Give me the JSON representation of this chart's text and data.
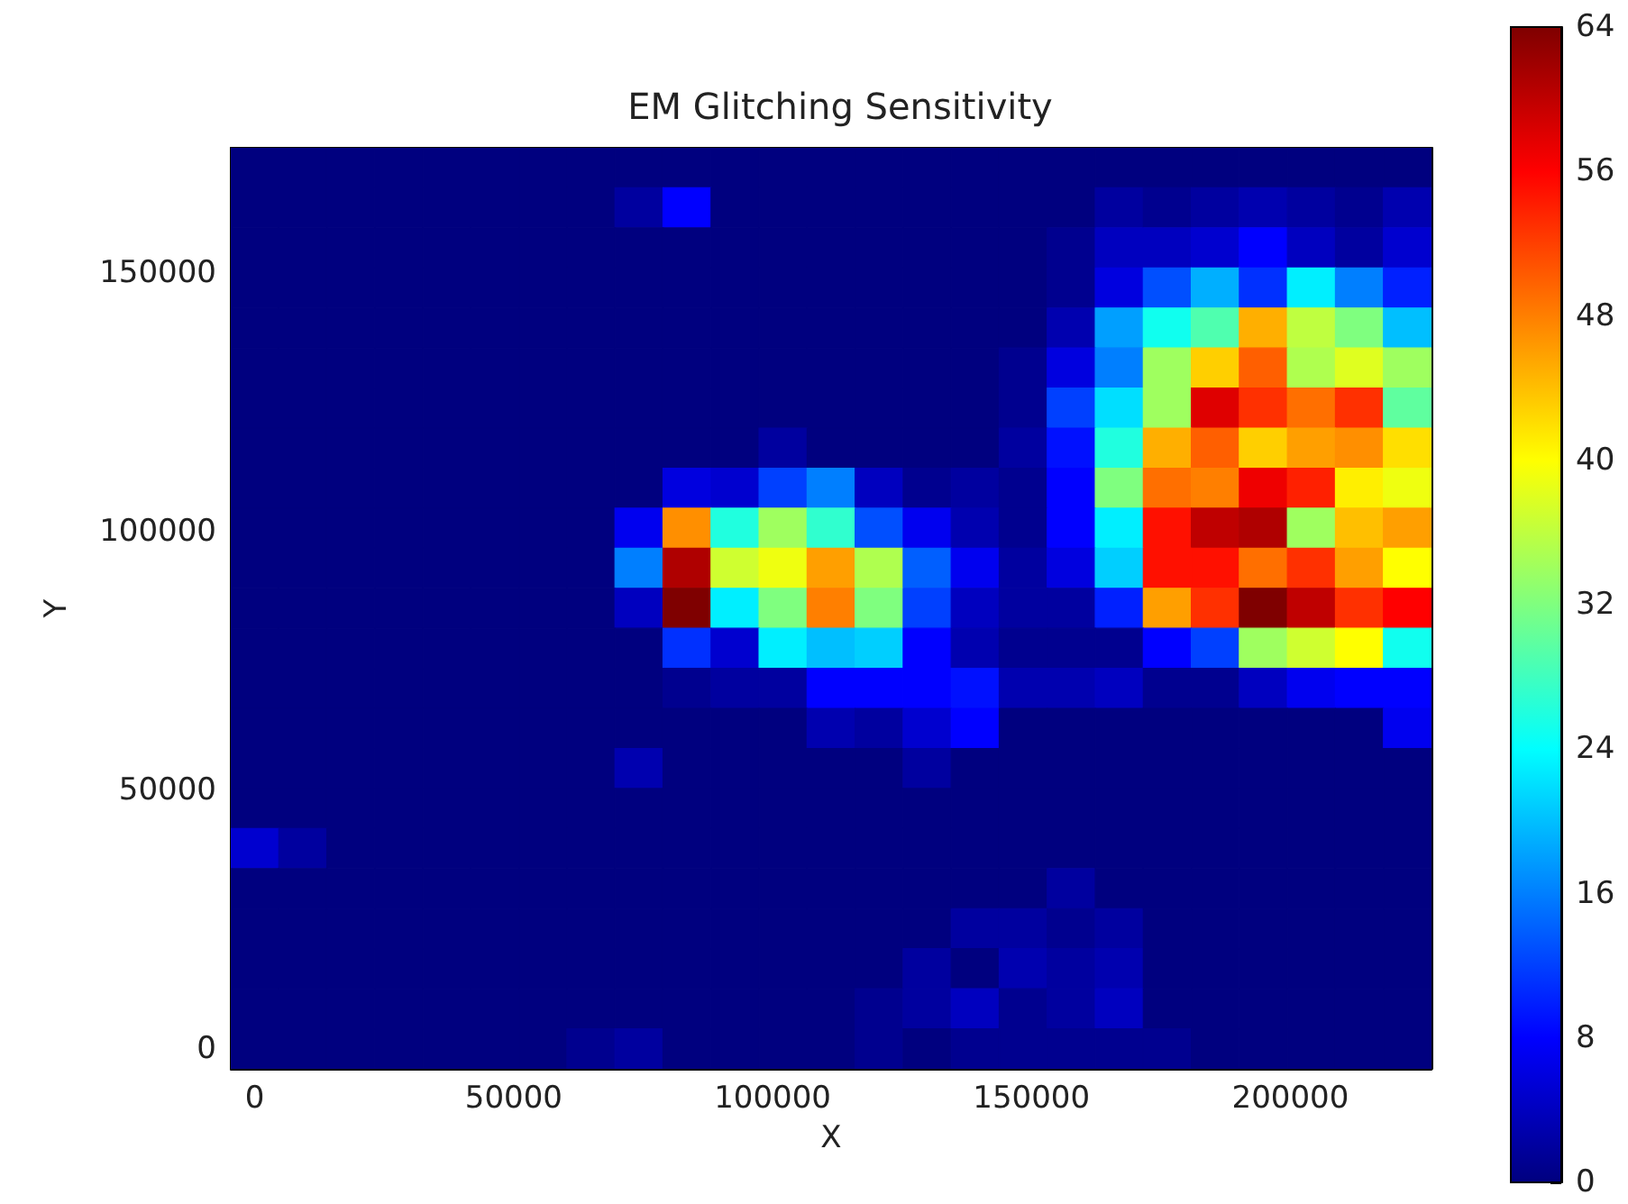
{
  "chart_data": {
    "type": "heatmap",
    "title": "EM Glitching Sensitivity",
    "xlabel": "X",
    "ylabel": "Y",
    "xlim": [
      -4640,
      227260
    ],
    "ylim": [
      -3870,
      174150
    ],
    "xticks": [
      0,
      50000,
      100000,
      150000,
      200000
    ],
    "yticks": [
      0,
      50000,
      100000,
      150000
    ],
    "clim": [
      0,
      64
    ],
    "cticks": [
      0,
      8,
      16,
      24,
      32,
      40,
      48,
      56,
      64
    ],
    "cells": [
      [
        0,
        0,
        0,
        0,
        0,
        0,
        0,
        0,
        0,
        0,
        0,
        0,
        0,
        0,
        0,
        0,
        0,
        0,
        0,
        0,
        0,
        0,
        0,
        0,
        0
      ],
      [
        0,
        0,
        0,
        0,
        0,
        0,
        0,
        0,
        2,
        8,
        0,
        0,
        0,
        0,
        0,
        0,
        0,
        0,
        2,
        1,
        2,
        3,
        2,
        1,
        3
      ],
      [
        0,
        0,
        0,
        0,
        0,
        0,
        0,
        0,
        0,
        0,
        0,
        0,
        0,
        0,
        0,
        0,
        0,
        1,
        4,
        4,
        5,
        8,
        4,
        2,
        5
      ],
      [
        0,
        0,
        0,
        0,
        0,
        0,
        0,
        0,
        0,
        0,
        0,
        0,
        0,
        0,
        0,
        0,
        0,
        1,
        6,
        13,
        19,
        11,
        23,
        16,
        10
      ],
      [
        0,
        0,
        0,
        0,
        0,
        0,
        0,
        0,
        0,
        0,
        0,
        0,
        0,
        0,
        0,
        0,
        0,
        3,
        18,
        25,
        29,
        45,
        36,
        32,
        20
      ],
      [
        0,
        0,
        0,
        0,
        0,
        0,
        0,
        0,
        0,
        0,
        0,
        0,
        0,
        0,
        0,
        0,
        1,
        6,
        16,
        34,
        43,
        50,
        35,
        38,
        34
      ],
      [
        0,
        0,
        0,
        0,
        0,
        0,
        0,
        0,
        0,
        0,
        0,
        0,
        0,
        0,
        0,
        0,
        1,
        12,
        22,
        34,
        58,
        53,
        49,
        53,
        30
      ],
      [
        0,
        0,
        0,
        0,
        0,
        0,
        0,
        0,
        0,
        0,
        0,
        2,
        0,
        0,
        0,
        0,
        2,
        9,
        26,
        45,
        50,
        43,
        46,
        47,
        42
      ],
      [
        0,
        0,
        0,
        0,
        0,
        0,
        0,
        0,
        0,
        6,
        5,
        12,
        16,
        4,
        1,
        2,
        1,
        8,
        32,
        49,
        48,
        57,
        54,
        41,
        39
      ],
      [
        0,
        0,
        0,
        0,
        0,
        0,
        0,
        0,
        7,
        47,
        26,
        34,
        27,
        13,
        7,
        3,
        1,
        8,
        23,
        55,
        60,
        61,
        34,
        44,
        46
      ],
      [
        0,
        0,
        0,
        0,
        0,
        0,
        0,
        0,
        16,
        61,
        37,
        39,
        46,
        35,
        14,
        7,
        2,
        6,
        21,
        55,
        55,
        49,
        53,
        46,
        40
      ],
      [
        0,
        0,
        0,
        0,
        0,
        0,
        0,
        0,
        4,
        64,
        23,
        32,
        48,
        32,
        12,
        4,
        2,
        2,
        10,
        46,
        53,
        64,
        60,
        53,
        56
      ],
      [
        0,
        0,
        0,
        0,
        0,
        0,
        0,
        0,
        0,
        11,
        5,
        23,
        20,
        21,
        8,
        3,
        1,
        1,
        1,
        8,
        12,
        34,
        37,
        40,
        25
      ],
      [
        0,
        0,
        0,
        0,
        0,
        0,
        0,
        0,
        0,
        1,
        2,
        2,
        8,
        8,
        8,
        9,
        3,
        3,
        4,
        1,
        1,
        4,
        7,
        8,
        8
      ],
      [
        0,
        0,
        0,
        0,
        0,
        0,
        0,
        0,
        0,
        0,
        0,
        0,
        3,
        2,
        5,
        8,
        0,
        0,
        0,
        0,
        0,
        0,
        0,
        0,
        7
      ],
      [
        0,
        0,
        0,
        0,
        0,
        0,
        0,
        0,
        3,
        0,
        0,
        0,
        0,
        0,
        2,
        0,
        0,
        0,
        0,
        0,
        0,
        0,
        0,
        0,
        0
      ],
      [
        0,
        0,
        0,
        0,
        0,
        0,
        0,
        0,
        0,
        0,
        0,
        0,
        0,
        0,
        0,
        0,
        0,
        0,
        0,
        0,
        0,
        0,
        0,
        0,
        0
      ],
      [
        5,
        2,
        0,
        0,
        0,
        0,
        0,
        0,
        0,
        0,
        0,
        0,
        0,
        0,
        0,
        0,
        0,
        0,
        0,
        0,
        0,
        0,
        0,
        0,
        0
      ],
      [
        0,
        0,
        0,
        0,
        0,
        0,
        0,
        0,
        0,
        0,
        0,
        0,
        0,
        0,
        0,
        0,
        0,
        2,
        0,
        0,
        0,
        0,
        0,
        0,
        0
      ],
      [
        0,
        0,
        0,
        0,
        0,
        0,
        0,
        0,
        0,
        0,
        0,
        0,
        0,
        0,
        0,
        2,
        2,
        1,
        2,
        0,
        0,
        0,
        0,
        0,
        0
      ],
      [
        0,
        0,
        0,
        0,
        0,
        0,
        0,
        0,
        0,
        0,
        0,
        0,
        0,
        0,
        2,
        0,
        3,
        2,
        3,
        0,
        0,
        0,
        0,
        0,
        0
      ],
      [
        0,
        0,
        0,
        0,
        0,
        0,
        0,
        0,
        0,
        0,
        0,
        0,
        0,
        1,
        2,
        4,
        1,
        2,
        4,
        0,
        0,
        0,
        0,
        0,
        0
      ],
      [
        0,
        0,
        0,
        0,
        0,
        0,
        0,
        1,
        2,
        0,
        0,
        0,
        0,
        1,
        0,
        1,
        1,
        1,
        1,
        1,
        0,
        0,
        0,
        0,
        0
      ]
    ]
  }
}
